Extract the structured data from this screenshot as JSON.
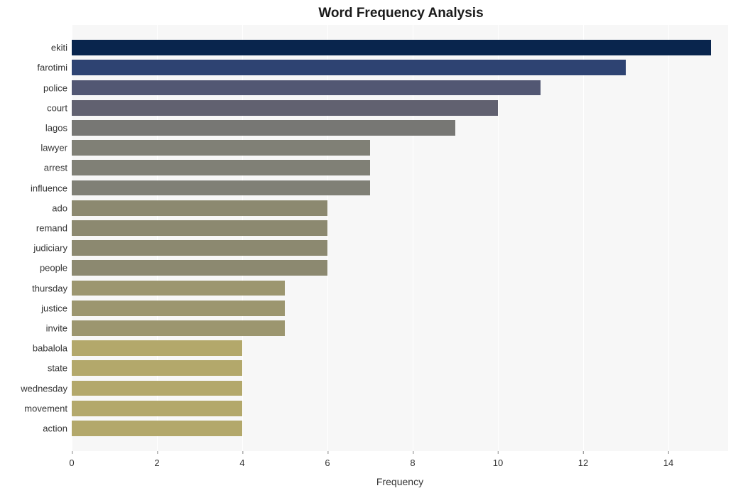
{
  "chart": {
    "type": "bar-horizontal",
    "title": "Word Frequency Analysis",
    "title_fontsize": 19,
    "title_fontweight": "bold",
    "title_color": "#1a1a1a",
    "xlabel": "Frequency",
    "xlabel_fontsize": 14,
    "xlabel_color": "#333333",
    "ylabel_fontsize": 13,
    "ylabel_color": "#333333",
    "xtick_fontsize": 13,
    "xlim": [
      0,
      15.4
    ],
    "xtick_step": 2,
    "xticks": [
      0,
      2,
      4,
      6,
      8,
      10,
      12,
      14
    ],
    "background_color": "#ffffff",
    "plot_background": "#f7f7f7",
    "grid_color": "#ffffff",
    "bar_height_ratio": 0.77,
    "categories": [
      "ekiti",
      "farotimi",
      "police",
      "court",
      "lagos",
      "lawyer",
      "arrest",
      "influence",
      "ado",
      "remand",
      "judiciary",
      "people",
      "thursday",
      "justice",
      "invite",
      "babalola",
      "state",
      "wednesday",
      "movement",
      "action"
    ],
    "values": [
      15,
      13,
      11,
      10,
      9,
      7,
      7,
      7,
      6,
      6,
      6,
      6,
      5,
      5,
      5,
      4,
      4,
      4,
      4,
      4
    ],
    "bar_colors": [
      "#09254d",
      "#2e4372",
      "#525773",
      "#616170",
      "#777774",
      "#808076",
      "#808076",
      "#808076",
      "#8c8970",
      "#8c8970",
      "#8c8970",
      "#8c8970",
      "#9c966f",
      "#9c966f",
      "#9c966f",
      "#b3a86b",
      "#b3a86b",
      "#b3a86b",
      "#b3a86b",
      "#b3a86b"
    ]
  }
}
